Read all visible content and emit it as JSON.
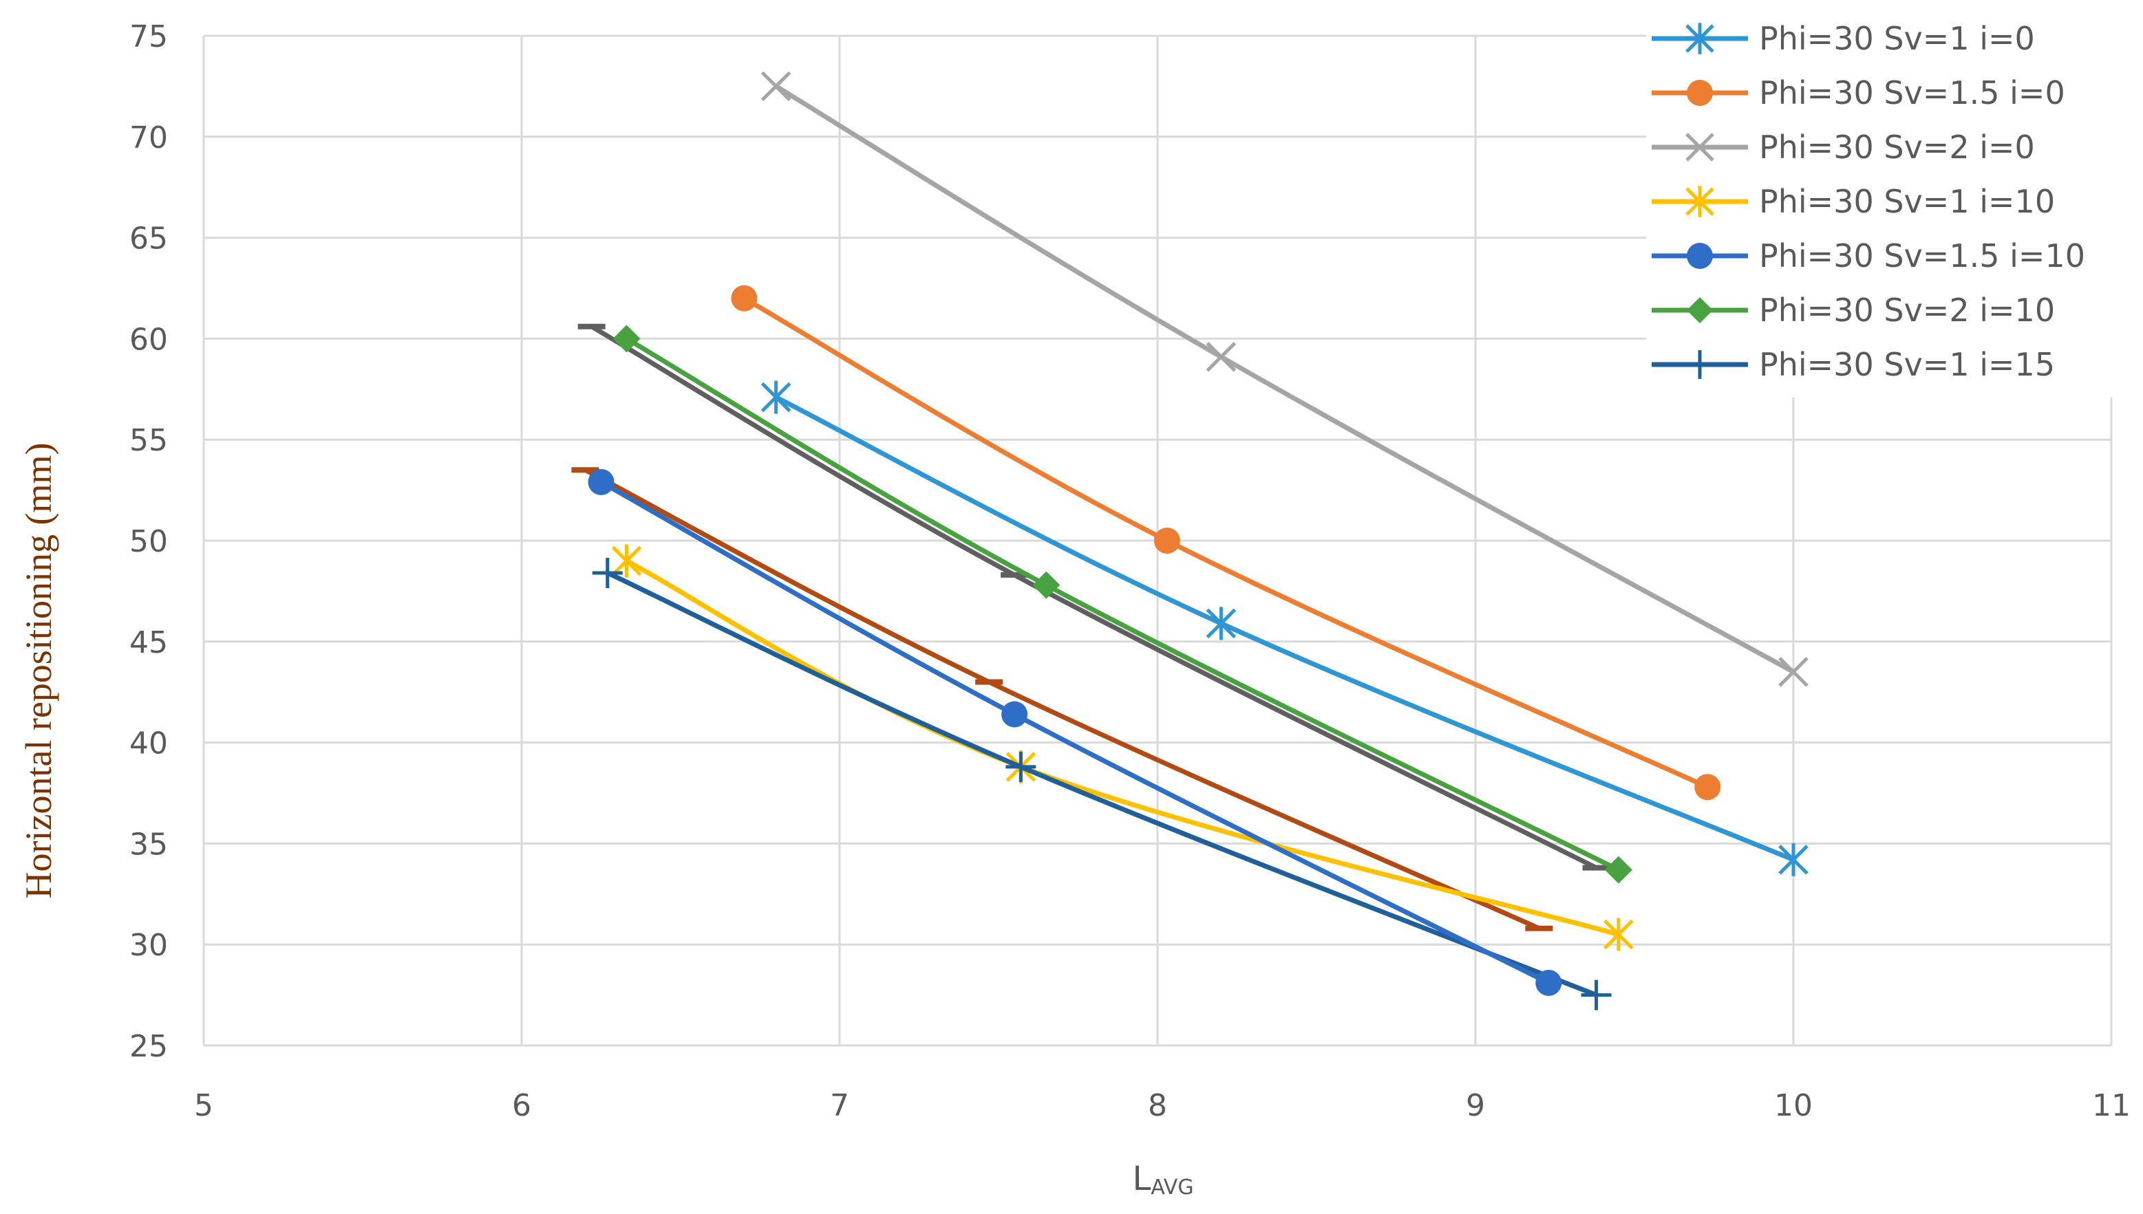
{
  "chart_data": {
    "type": "line",
    "title": "",
    "xlabel": {
      "main": "L",
      "sub": "AVG"
    },
    "ylabel": "Horizontal repositioning (mm)",
    "xlim": [
      5,
      11
    ],
    "ylim": [
      25,
      75
    ],
    "x_ticks": [
      "5",
      "6",
      "7",
      "8",
      "9",
      "10",
      "11"
    ],
    "y_ticks": [
      "25",
      "30",
      "35",
      "40",
      "45",
      "50",
      "55",
      "60",
      "65",
      "70",
      "75"
    ],
    "grid": true,
    "legend_position": "top-right",
    "series": [
      {
        "name": "Phi=30 Sv=1 i=0",
        "color": "#2e96d4",
        "marker": "asterisk",
        "points": [
          [
            6.8,
            57.1
          ],
          [
            8.2,
            45.9
          ],
          [
            10.0,
            34.2
          ]
        ]
      },
      {
        "name": "Phi=30 Sv=1.5 i=0",
        "color": "#ed7d31",
        "marker": "circle",
        "points": [
          [
            6.7,
            62.0
          ],
          [
            8.03,
            50.0
          ],
          [
            9.73,
            37.8
          ]
        ]
      },
      {
        "name": "Phi=30 Sv=2 i=0",
        "color": "#a5a5a5",
        "marker": "x",
        "points": [
          [
            6.8,
            72.5
          ],
          [
            8.2,
            59.1
          ],
          [
            10.0,
            43.5
          ]
        ]
      },
      {
        "name": "Phi=30 Sv=1 i=10",
        "color": "#ffc000",
        "marker": "asterisk",
        "points": [
          [
            6.33,
            49.0
          ],
          [
            7.57,
            38.8
          ],
          [
            9.45,
            30.5
          ]
        ]
      },
      {
        "name": "Phi=30 Sv=1.5 i=10",
        "color": "#2f6ec6",
        "marker": "circle",
        "points": [
          [
            6.25,
            52.9
          ],
          [
            7.55,
            41.4
          ],
          [
            9.23,
            28.1
          ]
        ]
      },
      {
        "name": "Phi=30 Sv=2 i=10",
        "color": "#48a23f",
        "marker": "diamond",
        "points": [
          [
            6.33,
            60.0
          ],
          [
            7.65,
            47.8
          ],
          [
            9.45,
            33.7
          ]
        ]
      },
      {
        "name": "Phi=30 Sv=1 i=15",
        "color": "#1f5f9a",
        "marker": "plus",
        "points": [
          [
            6.27,
            48.4
          ],
          [
            7.57,
            38.8
          ],
          [
            9.38,
            27.5
          ]
        ]
      },
      {
        "name": "",
        "color": "#5f5f5f",
        "marker": "dash",
        "points": [
          [
            6.22,
            60.6
          ],
          [
            7.55,
            48.3
          ],
          [
            9.38,
            33.8
          ]
        ]
      },
      {
        "name": "",
        "color": "#b24a14",
        "marker": "dash",
        "points": [
          [
            6.2,
            53.5
          ],
          [
            7.47,
            43.0
          ],
          [
            9.2,
            30.8
          ]
        ]
      }
    ]
  }
}
